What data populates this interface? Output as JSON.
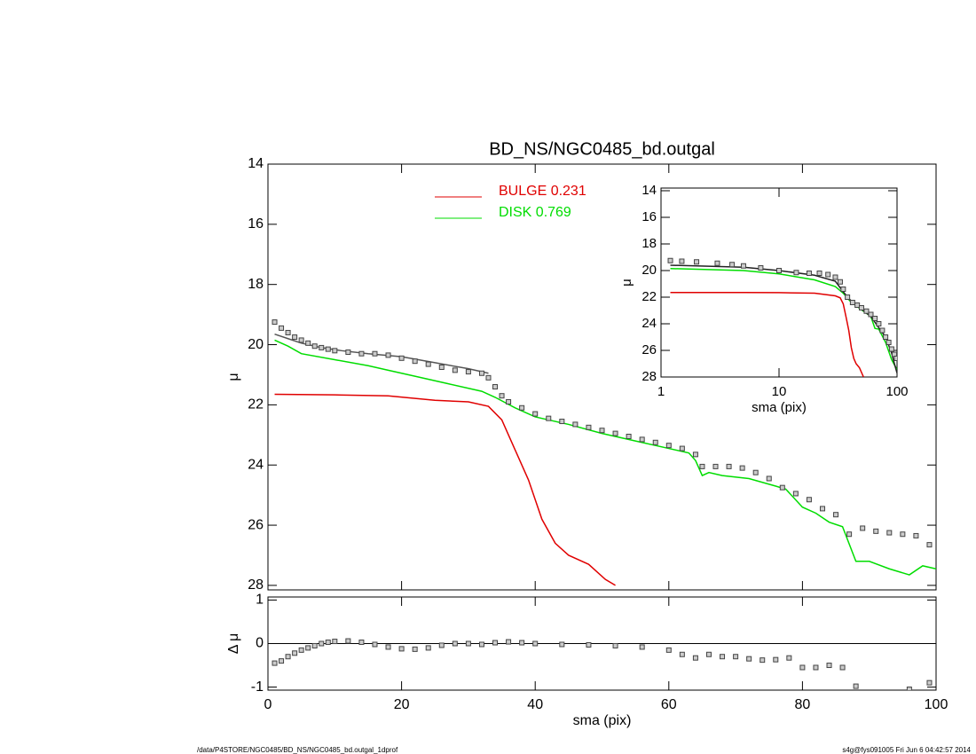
{
  "chart_data": [
    {
      "type": "line",
      "title": "BD_NS/NGC0485_bd.outgal",
      "y_label": "μ",
      "xlim": [
        0,
        100
      ],
      "xticks": [
        0,
        20,
        40,
        60,
        80,
        100
      ],
      "show_xtick_labels": false,
      "ylim": [
        28.15,
        14
      ],
      "yticks": [
        14,
        16,
        18,
        20,
        22,
        24,
        26,
        28
      ],
      "legend": "top",
      "series": [
        {
          "style": "line",
          "color": "#555555",
          "x": [
            1,
            3,
            5,
            8,
            11,
            15,
            20,
            25,
            30,
            33
          ],
          "values": [
            19.65,
            19.8,
            19.95,
            20.1,
            20.2,
            20.3,
            20.4,
            20.6,
            20.8,
            20.95
          ]
        },
        {
          "name": "BULGE  0.231",
          "style": "line",
          "color": "#e00000",
          "x": [
            1,
            10,
            18,
            25,
            30,
            33,
            35,
            37,
            39,
            41,
            43,
            45,
            48,
            50.5,
            52
          ],
          "values": [
            21.65,
            21.67,
            21.7,
            21.85,
            21.9,
            22.05,
            22.5,
            23.5,
            24.5,
            25.8,
            26.6,
            27.0,
            27.3,
            27.8,
            28.0
          ]
        },
        {
          "name": "DISK  0.769",
          "style": "line",
          "color": "#00dd00",
          "x": [
            1,
            3,
            5,
            10,
            15,
            18,
            22,
            27,
            32,
            34,
            37,
            40,
            45,
            50,
            55,
            60,
            63,
            64,
            65,
            66,
            68,
            72,
            76,
            77.5,
            80,
            82,
            84,
            86,
            88,
            90,
            93,
            96,
            98,
            100
          ],
          "values": [
            19.85,
            20.05,
            20.3,
            20.5,
            20.7,
            20.85,
            21.05,
            21.3,
            21.55,
            21.75,
            22.1,
            22.4,
            22.65,
            22.95,
            23.2,
            23.45,
            23.6,
            23.85,
            24.35,
            24.25,
            24.35,
            24.45,
            24.7,
            24.8,
            25.4,
            25.6,
            25.9,
            26.05,
            27.2,
            27.2,
            27.45,
            27.65,
            27.35,
            27.45
          ]
        },
        {
          "style": "markers",
          "color": "#444444",
          "x": [
            1,
            2,
            3,
            4,
            5,
            6,
            7,
            8,
            9,
            10,
            12,
            14,
            16,
            18,
            20,
            22,
            24,
            26,
            28,
            30,
            32,
            33,
            34,
            35,
            36,
            38,
            40,
            42,
            44,
            46,
            48,
            50,
            52,
            54,
            56,
            58,
            60,
            62,
            64,
            65,
            67,
            69,
            71,
            73,
            75,
            77,
            79,
            81,
            83,
            85,
            87,
            89,
            91,
            93,
            95,
            97,
            99
          ],
          "values": [
            19.25,
            19.45,
            19.6,
            19.75,
            19.85,
            19.95,
            20.05,
            20.1,
            20.15,
            20.2,
            20.25,
            20.3,
            20.3,
            20.35,
            20.45,
            20.55,
            20.65,
            20.75,
            20.85,
            20.9,
            20.95,
            21.1,
            21.4,
            21.7,
            21.9,
            22.1,
            22.3,
            22.45,
            22.55,
            22.65,
            22.75,
            22.85,
            22.95,
            23.05,
            23.15,
            23.25,
            23.35,
            23.45,
            23.65,
            24.05,
            24.05,
            24.05,
            24.1,
            24.25,
            24.45,
            24.75,
            24.95,
            25.15,
            25.45,
            25.65,
            26.3,
            26.1,
            26.2,
            26.25,
            26.3,
            26.35,
            26.65
          ]
        }
      ]
    },
    {
      "type": "line",
      "y_label": "Δ μ",
      "x_label": "sma (pix)",
      "xlim": [
        0,
        100
      ],
      "xticks": [
        0,
        20,
        40,
        60,
        80,
        100
      ],
      "show_xtick_labels": true,
      "ylim": [
        -1.07,
        1.07
      ],
      "yticks": [
        -1,
        0,
        1
      ],
      "hline": 0,
      "series": [
        {
          "style": "markers",
          "color": "#444444",
          "x": [
            1,
            2,
            3,
            4,
            5,
            6,
            7,
            8,
            9,
            10,
            12,
            14,
            16,
            18,
            20,
            22,
            24,
            26,
            28,
            30,
            32,
            34,
            36,
            38,
            40,
            44,
            48,
            52,
            56,
            60,
            62,
            64,
            66,
            68,
            70,
            72,
            74,
            76,
            78,
            80,
            82,
            84,
            86,
            88,
            96,
            99
          ],
          "values": [
            -0.45,
            -0.4,
            -0.3,
            -0.22,
            -0.15,
            -0.1,
            -0.05,
            0,
            0.03,
            0.05,
            0.06,
            0.03,
            -0.02,
            -0.08,
            -0.12,
            -0.13,
            -0.1,
            -0.04,
            0,
            0,
            -0.02,
            0.02,
            0.04,
            0.02,
            0,
            -0.02,
            -0.03,
            -0.05,
            -0.08,
            -0.15,
            -0.25,
            -0.33,
            -0.25,
            -0.3,
            -0.3,
            -0.35,
            -0.38,
            -0.37,
            -0.33,
            -0.55,
            -0.55,
            -0.5,
            -0.55,
            -0.98,
            -1.05,
            -0.9
          ]
        }
      ]
    },
    {
      "type": "line",
      "y_label": "μ",
      "x_label": "sma (pix)",
      "xscale": "log",
      "xlim": [
        1,
        100
      ],
      "xticks": [
        1,
        10,
        100
      ],
      "show_xtick_labels": true,
      "ylim": [
        28,
        13.8
      ],
      "yticks": [
        14,
        16,
        18,
        20,
        22,
        24,
        26,
        28
      ],
      "series": [
        {
          "style": "line",
          "color": "#e00000",
          "x": [
            1.2,
            5,
            10,
            20,
            30,
            33,
            35,
            37,
            39,
            41,
            43,
            45,
            48,
            52
          ],
          "values": [
            21.65,
            21.65,
            21.66,
            21.7,
            21.9,
            22.05,
            22.5,
            23.5,
            24.5,
            25.8,
            26.6,
            27.0,
            27.3,
            28.0
          ]
        },
        {
          "style": "line",
          "color": "#00dd00",
          "x": [
            1.2,
            2,
            5,
            10,
            20,
            30,
            35,
            40,
            50,
            60,
            65,
            70,
            80,
            90,
            100
          ],
          "values": [
            19.85,
            19.9,
            20.0,
            20.25,
            20.7,
            21.2,
            21.7,
            22.3,
            22.95,
            23.45,
            24.35,
            24.4,
            25.4,
            26.7,
            27.45
          ]
        },
        {
          "style": "line",
          "color": "#222222",
          "x": [
            1.2,
            2,
            5,
            10,
            20,
            30,
            35,
            40,
            50,
            60,
            70,
            80,
            90,
            95,
            100
          ],
          "values": [
            19.6,
            19.65,
            19.75,
            20.0,
            20.35,
            20.8,
            21.6,
            22.2,
            22.9,
            23.45,
            24.3,
            25.0,
            26.2,
            27.0,
            27.7
          ]
        },
        {
          "style": "markers",
          "color": "#444444",
          "x": [
            1.2,
            1.5,
            2,
            3,
            4,
            5,
            7,
            10,
            14,
            18,
            22,
            26,
            30,
            33,
            35,
            38,
            42,
            46,
            50,
            55,
            60,
            65,
            70,
            75,
            80,
            85,
            90,
            95,
            99
          ],
          "values": [
            19.25,
            19.3,
            19.35,
            19.45,
            19.55,
            19.65,
            19.8,
            20.0,
            20.15,
            20.2,
            20.2,
            20.3,
            20.5,
            20.85,
            21.4,
            22.0,
            22.4,
            22.6,
            22.8,
            23.05,
            23.3,
            23.6,
            24.0,
            24.5,
            25.0,
            25.4,
            25.9,
            26.3,
            26.6
          ]
        }
      ]
    }
  ],
  "footer": {
    "left": "/data/P4STORE/NGC0485/BD_NS/NGC0485_bd.outgal_1dprof",
    "right": "s4g@fys091005  Fri Jun  6 04:42:57 2014"
  }
}
